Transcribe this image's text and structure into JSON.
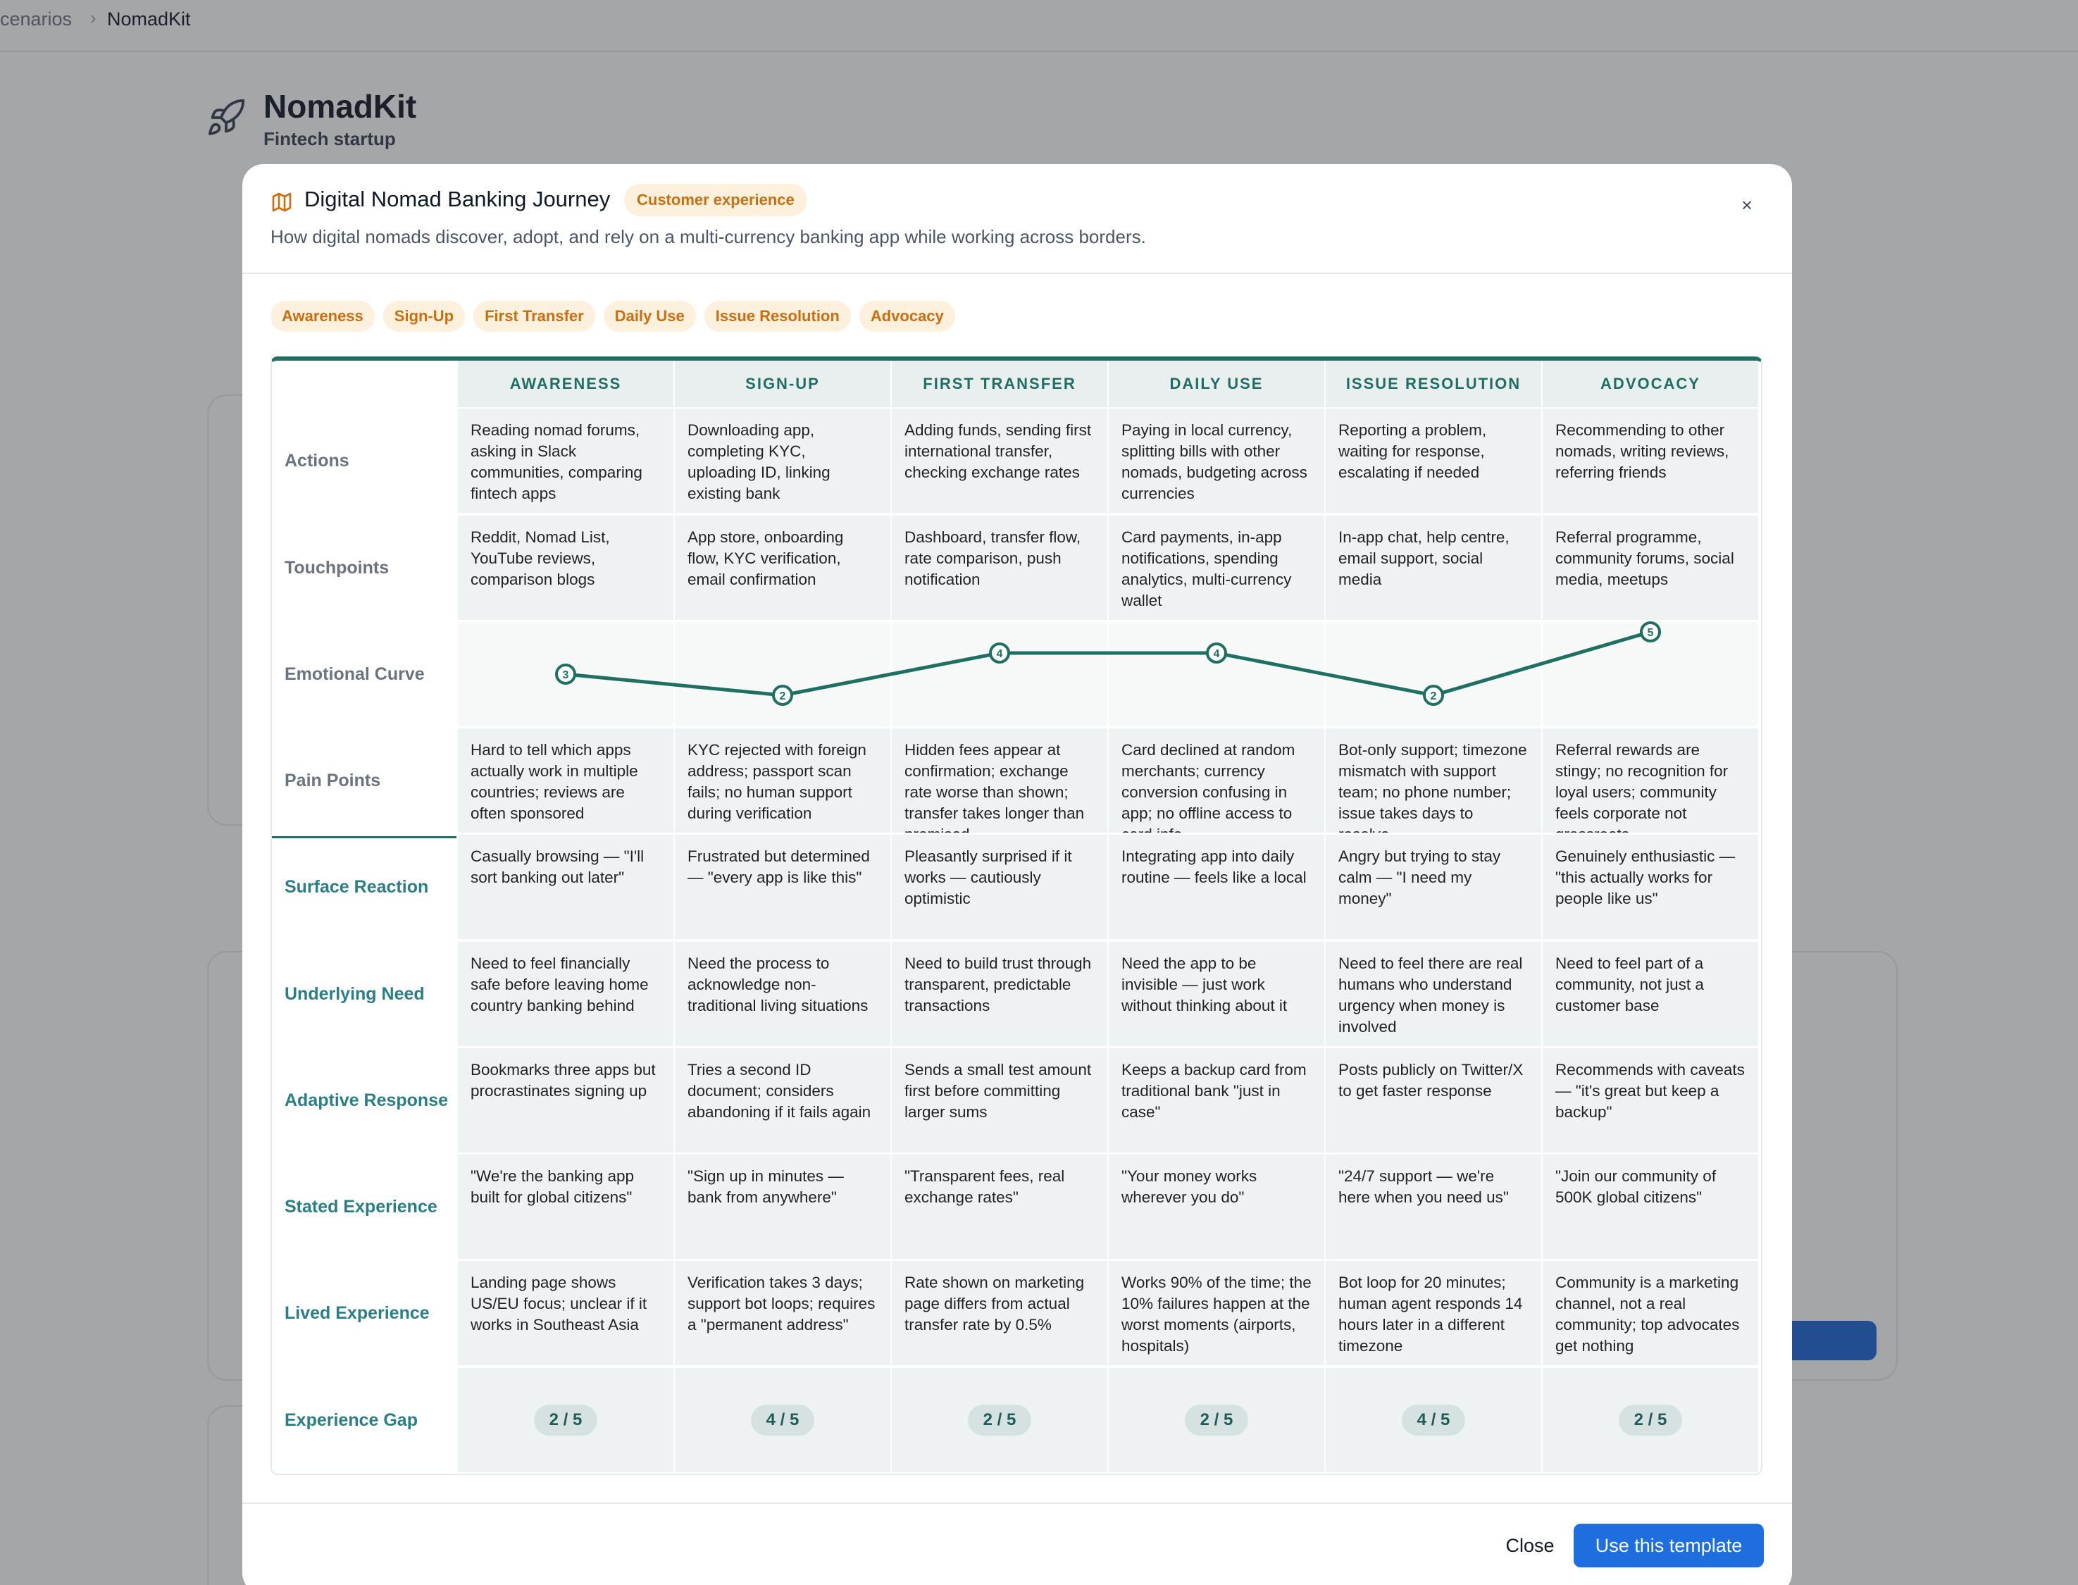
{
  "breadcrumb": {
    "parent": "cenarios",
    "current": "NomadKit"
  },
  "page": {
    "title": "NomadKit",
    "subtitle": "Fintech startup"
  },
  "modal": {
    "title": "Digital Nomad Banking Journey",
    "badge": "Customer experience",
    "description": "How digital nomads discover, adopt, and rely on a multi-currency banking app while working across borders.",
    "stage_chips": [
      "Awareness",
      "Sign-Up",
      "First Transfer",
      "Daily Use",
      "Issue Resolution",
      "Advocacy"
    ],
    "stages": [
      "AWARENESS",
      "SIGN-UP",
      "FIRST TRANSFER",
      "DAILY USE",
      "ISSUE RESOLUTION",
      "ADVOCACY"
    ],
    "rows": [
      {
        "label": "Actions",
        "cells": [
          "Reading nomad forums, asking in Slack communities, comparing fintech apps",
          "Downloading app, completing KYC, uploading ID, linking existing bank",
          "Adding funds, sending first international transfer, checking exchange rates",
          "Paying in local currency, splitting bills with other nomads, budgeting across currencies",
          "Reporting a problem, waiting for response, escalating if needed",
          "Recommending to other nomads, writing reviews, referring friends"
        ]
      },
      {
        "label": "Touchpoints",
        "cells": [
          "Reddit, Nomad List, YouTube reviews, comparison blogs",
          "App store, onboarding flow, KYC verification, email confirmation",
          "Dashboard, transfer flow, rate comparison, push notification",
          "Card payments, in-app notifications, spending analytics, multi-currency wallet",
          "In-app chat, help centre, email support, social media",
          "Referral programme, community forums, social media, meetups"
        ]
      },
      {
        "label": "Pain Points",
        "cells": [
          "Hard to tell which apps actually work in multiple countries; reviews are often sponsored",
          "KYC rejected with foreign address; passport scan fails; no human support during verification",
          "Hidden fees appear at confirmation; exchange rate worse than shown; transfer takes longer than promised",
          "Card declined at random merchants; currency conversion confusing in app; no offline access to card info",
          "Bot-only support; timezone mismatch with support team; no phone number; issue takes days to resolve",
          "Referral rewards are stingy; no recognition for loyal users; community feels corporate not grassroots"
        ]
      },
      {
        "label": "Surface Reaction",
        "cells": [
          "Casually browsing — \"I'll sort banking out later\"",
          "Frustrated but determined — \"every app is like this\"",
          "Pleasantly surprised if it works — cautiously optimistic",
          "Integrating app into daily routine — feels like a local",
          "Angry but trying to stay calm — \"I need my money\"",
          "Genuinely enthusiastic — \"this actually works for people like us\""
        ]
      },
      {
        "label": "Underlying Need",
        "cells": [
          "Need to feel financially safe before leaving home country banking behind",
          "Need the process to acknowledge non-traditional living situations",
          "Need to build trust through transparent, predictable transactions",
          "Need the app to be invisible — just work without thinking about it",
          "Need to feel there are real humans who understand urgency when money is involved",
          "Need to feel part of a community, not just a customer base"
        ]
      },
      {
        "label": "Adaptive Response",
        "cells": [
          "Bookmarks three apps but procrastinates signing up",
          "Tries a second ID document; considers abandoning if it fails again",
          "Sends a small test amount first before committing larger sums",
          "Keeps a backup card from traditional bank \"just in case\"",
          "Posts publicly on Twitter/X to get faster response",
          "Recommends with caveats — \"it's great but keep a backup\""
        ]
      },
      {
        "label": "Stated Experience",
        "cells": [
          "\"We're the banking app built for global citizens\"",
          "\"Sign up in minutes — bank from anywhere\"",
          "\"Transparent fees, real exchange rates\"",
          "\"Your money works wherever you do\"",
          "\"24/7 support — we're here when you need us\"",
          "\"Join our community of 500K global citizens\""
        ]
      },
      {
        "label": "Lived Experience",
        "cells": [
          "Landing page shows US/EU focus; unclear if it works in Southeast Asia",
          "Verification takes 3 days; support bot loops; requires a \"permanent address\"",
          "Rate shown on marketing page differs from actual transfer rate by 0.5%",
          "Works 90% of the time; the 10% failures happen at the worst moments (airports, hospitals)",
          "Bot loop for 20 minutes; human agent responds 14 hours later in a different timezone",
          "Community is a marketing channel, not a real community; top advocates get nothing"
        ]
      }
    ],
    "emotional_curve": {
      "label": "Emotional Curve",
      "scores": [
        3,
        2,
        4,
        4,
        2,
        5
      ],
      "point_labels": [
        "3",
        "2",
        "4",
        "4",
        "2",
        "5"
      ],
      "color": "#1f6f63"
    },
    "experience_gap": {
      "label": "Experience Gap",
      "values": [
        "2 / 5",
        "4 / 5",
        "2 / 5",
        "2 / 5",
        "4 / 5",
        "2 / 5"
      ]
    },
    "footer": {
      "close": "Close",
      "use": "Use this template"
    }
  }
}
